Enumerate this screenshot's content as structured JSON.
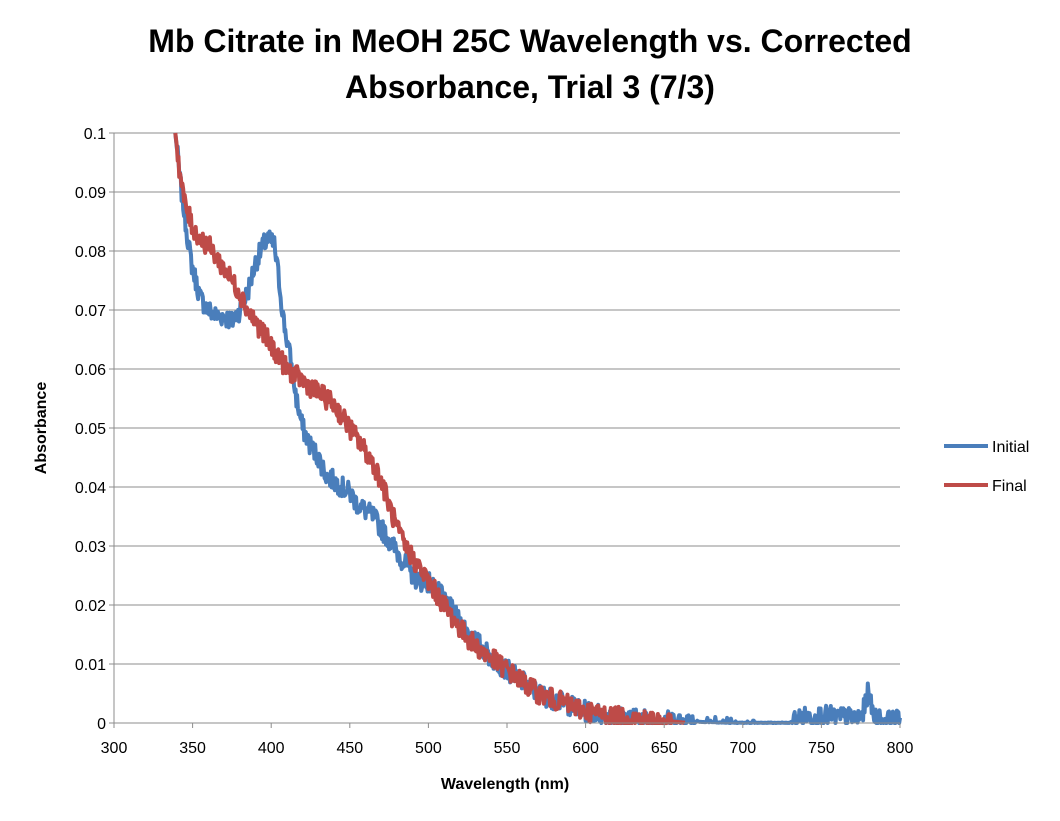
{
  "chart_data": {
    "type": "line",
    "title_lines": [
      "Mb Citrate in MeOH 25C Wavelength vs. Corrected",
      "Absorbance, Trial 3 (7/3)"
    ],
    "xlabel": "Wavelength (nm)",
    "ylabel": "Absorbance",
    "xlim": [
      300,
      800
    ],
    "ylim": [
      0,
      0.1
    ],
    "x_ticks": [
      300,
      350,
      400,
      450,
      500,
      550,
      600,
      650,
      700,
      750,
      800
    ],
    "y_ticks": [
      0,
      0.01,
      0.02,
      0.03,
      0.04,
      0.05,
      0.06,
      0.07,
      0.08,
      0.09,
      0.1
    ],
    "y_tick_labels": [
      "0",
      "0.01",
      "0.02",
      "0.03",
      "0.04",
      "0.05",
      "0.06",
      "0.07",
      "0.08",
      "0.09",
      "0.1"
    ],
    "grid": "horizontal",
    "legend_position": "right",
    "series": [
      {
        "name": "Initial",
        "color": "#4a7ebb",
        "x": [
          339,
          342,
          345,
          348,
          350,
          355,
          360,
          365,
          370,
          375,
          380,
          385,
          390,
          395,
          398,
          402,
          405,
          408,
          412,
          416,
          420,
          425,
          430,
          435,
          440,
          445,
          450,
          455,
          460,
          465,
          470,
          475,
          480,
          485,
          490,
          495,
          500,
          510,
          520,
          530,
          540,
          550,
          560,
          570,
          580,
          590,
          600,
          610,
          620,
          630,
          640,
          650,
          660,
          670,
          680,
          690,
          700,
          710,
          720,
          730,
          735,
          740,
          745,
          750,
          755,
          760,
          765,
          770,
          775,
          778,
          780,
          782,
          785,
          790,
          795,
          800
        ],
        "y": [
          0.1,
          0.092,
          0.086,
          0.08,
          0.077,
          0.072,
          0.07,
          0.069,
          0.069,
          0.068,
          0.07,
          0.073,
          0.078,
          0.081,
          0.082,
          0.081,
          0.075,
          0.068,
          0.062,
          0.055,
          0.05,
          0.047,
          0.045,
          0.042,
          0.041,
          0.04,
          0.039,
          0.037,
          0.036,
          0.035,
          0.033,
          0.031,
          0.029,
          0.027,
          0.025,
          0.024,
          0.024,
          0.021,
          0.017,
          0.014,
          0.011,
          0.009,
          0.007,
          0.005,
          0.004,
          0.003,
          0.002,
          0.0015,
          0.001,
          0.0008,
          0.0006,
          0.0004,
          0.0003,
          0.0002,
          0.0001,
          0,
          0,
          0,
          0,
          0,
          0.0008,
          0.001,
          0.001,
          0.0012,
          0.0012,
          0.001,
          0.001,
          0.0008,
          0.001,
          0.003,
          0.006,
          0.002,
          0.0008,
          0.0005,
          0.0003,
          0.0005
        ]
      },
      {
        "name": "Final",
        "color": "#be4b48",
        "x": [
          339,
          342,
          345,
          350,
          355,
          360,
          365,
          370,
          375,
          380,
          385,
          390,
          395,
          400,
          405,
          410,
          415,
          420,
          425,
          430,
          435,
          440,
          445,
          450,
          455,
          460,
          465,
          470,
          475,
          480,
          485,
          490,
          495,
          500,
          510,
          520,
          530,
          540,
          550,
          560,
          570,
          580,
          590,
          600,
          610,
          620,
          630,
          640,
          650,
          660,
          663
        ],
        "y": [
          0.1,
          0.093,
          0.088,
          0.084,
          0.082,
          0.081,
          0.079,
          0.077,
          0.075,
          0.073,
          0.07,
          0.068,
          0.066,
          0.064,
          0.062,
          0.06,
          0.059,
          0.058,
          0.057,
          0.056,
          0.055,
          0.054,
          0.052,
          0.05,
          0.048,
          0.046,
          0.044,
          0.041,
          0.037,
          0.033,
          0.03,
          0.028,
          0.026,
          0.024,
          0.02,
          0.016,
          0.013,
          0.011,
          0.009,
          0.007,
          0.005,
          0.004,
          0.003,
          0.002,
          0.0015,
          0.001,
          0.0008,
          0.0005,
          0.0003,
          0.0001,
          0
        ]
      }
    ]
  }
}
